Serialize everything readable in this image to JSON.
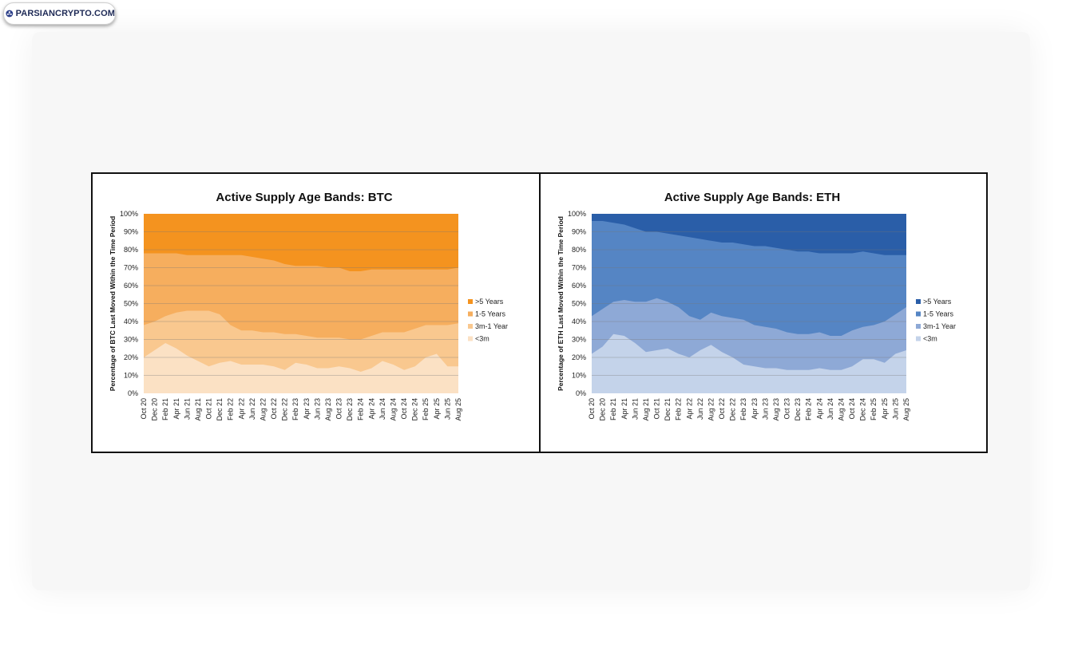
{
  "logo": {
    "text": "PARSIANCRYPTO.COM"
  },
  "chart_data": [
    {
      "type": "area",
      "stacked": true,
      "title": "Active Supply Age Bands: BTC",
      "ylabel": "Percentage of BTC Last Moved Within the Time Period",
      "xlabel": "",
      "ylim": [
        0,
        100
      ],
      "yticks": [
        "0%",
        "10%",
        "20%",
        "30%",
        "40%",
        "50%",
        "60%",
        "70%",
        "80%",
        "90%",
        "100%"
      ],
      "x": [
        "Oct 20",
        "Dec 20",
        "Feb 21",
        "Apr 21",
        "Jun 21",
        "Aug 21",
        "Oct 21",
        "Dec 21",
        "Feb 22",
        "Apr 22",
        "Jun 22",
        "Aug 22",
        "Oct 22",
        "Dec 22",
        "Feb 23",
        "Apr 23",
        "Jun 23",
        "Aug 23",
        "Oct 23",
        "Dec 23",
        "Feb 24",
        "Apr 24",
        "Jun 24",
        "Aug 24",
        "Oct 24",
        "Dec 24",
        "Feb 25",
        "Apr 25",
        "Jun 25",
        "Aug 25"
      ],
      "legend_position": "right",
      "grid": true,
      "colors": {
        ">5 Years": "#f4931f",
        "1-5 Years": "#f6ae5e",
        "3m-1 Year": "#f9c88f",
        "<3m": "#fbe1c4"
      },
      "series": [
        {
          "name": "<3m",
          "values": [
            20,
            24,
            28,
            25,
            21,
            18,
            15,
            17,
            18,
            16,
            16,
            16,
            15,
            13,
            17,
            16,
            14,
            14,
            15,
            14,
            12,
            14,
            18,
            16,
            13,
            15,
            20,
            22,
            15,
            15
          ]
        },
        {
          "name": "3m-1 Year",
          "values": [
            38,
            40,
            43,
            45,
            46,
            46,
            46,
            44,
            38,
            35,
            35,
            34,
            34,
            33,
            33,
            32,
            31,
            31,
            31,
            30,
            30,
            32,
            34,
            34,
            34,
            36,
            38,
            38,
            38,
            39
          ]
        },
        {
          "name": "1-5 Years",
          "values": [
            78,
            78,
            78,
            78,
            77,
            77,
            77,
            77,
            77,
            77,
            76,
            75,
            74,
            72,
            71,
            71,
            71,
            70,
            70,
            68,
            68,
            69,
            69,
            69,
            69,
            69,
            69,
            69,
            69,
            70
          ]
        },
        {
          "name": ">5 Years",
          "values": [
            100,
            100,
            100,
            100,
            100,
            100,
            100,
            100,
            100,
            100,
            100,
            100,
            100,
            100,
            100,
            100,
            100,
            100,
            100,
            100,
            100,
            100,
            100,
            100,
            100,
            100,
            100,
            100,
            100,
            100
          ]
        }
      ]
    },
    {
      "type": "area",
      "stacked": true,
      "title": "Active Supply Age Bands: ETH",
      "ylabel": "Percentage of ETH Last Moved Within the Time Period",
      "xlabel": "",
      "ylim": [
        0,
        100
      ],
      "yticks": [
        "0%",
        "10%",
        "20%",
        "30%",
        "40%",
        "50%",
        "60%",
        "70%",
        "80%",
        "90%",
        "100%"
      ],
      "x": [
        "Oct 20",
        "Dec 20",
        "Feb 21",
        "Apr 21",
        "Jun 21",
        "Aug 21",
        "Oct 21",
        "Dec 21",
        "Feb 22",
        "Apr 22",
        "Jun 22",
        "Aug 22",
        "Oct 22",
        "Dec 22",
        "Feb 23",
        "Apr 23",
        "Jun 23",
        "Aug 23",
        "Oct 23",
        "Dec 23",
        "Feb 24",
        "Apr 24",
        "Jun 24",
        "Aug 24",
        "Oct 24",
        "Dec 24",
        "Feb 25",
        "Apr 25",
        "Jun 25",
        "Aug 25"
      ],
      "legend_position": "right",
      "grid": true,
      "colors": {
        ">5 Years": "#2a5ea8",
        "1-5 Years": "#5585c4",
        "3m-1 Year": "#8ea9d6",
        "<3m": "#c4d3ea"
      },
      "series": [
        {
          "name": "<3m",
          "values": [
            22,
            26,
            33,
            32,
            28,
            23,
            24,
            25,
            22,
            20,
            24,
            27,
            23,
            20,
            16,
            15,
            14,
            14,
            13,
            13,
            13,
            14,
            13,
            13,
            15,
            19,
            19,
            17,
            22,
            24
          ]
        },
        {
          "name": "3m-1 Year",
          "values": [
            43,
            47,
            51,
            52,
            51,
            51,
            53,
            51,
            48,
            43,
            41,
            45,
            43,
            42,
            41,
            38,
            37,
            36,
            34,
            33,
            33,
            34,
            32,
            32,
            35,
            37,
            38,
            40,
            44,
            48
          ]
        },
        {
          "name": "1-5 Years",
          "values": [
            96,
            96,
            95,
            94,
            92,
            90,
            90,
            89,
            88,
            87,
            86,
            85,
            84,
            84,
            83,
            82,
            82,
            81,
            80,
            79,
            79,
            78,
            78,
            78,
            78,
            79,
            78,
            77,
            77,
            77
          ]
        },
        {
          "name": ">5 Years",
          "values": [
            100,
            100,
            100,
            100,
            100,
            100,
            100,
            100,
            100,
            100,
            100,
            100,
            100,
            100,
            100,
            100,
            100,
            100,
            100,
            100,
            100,
            100,
            100,
            100,
            100,
            100,
            100,
            100,
            100,
            100
          ]
        }
      ]
    }
  ]
}
